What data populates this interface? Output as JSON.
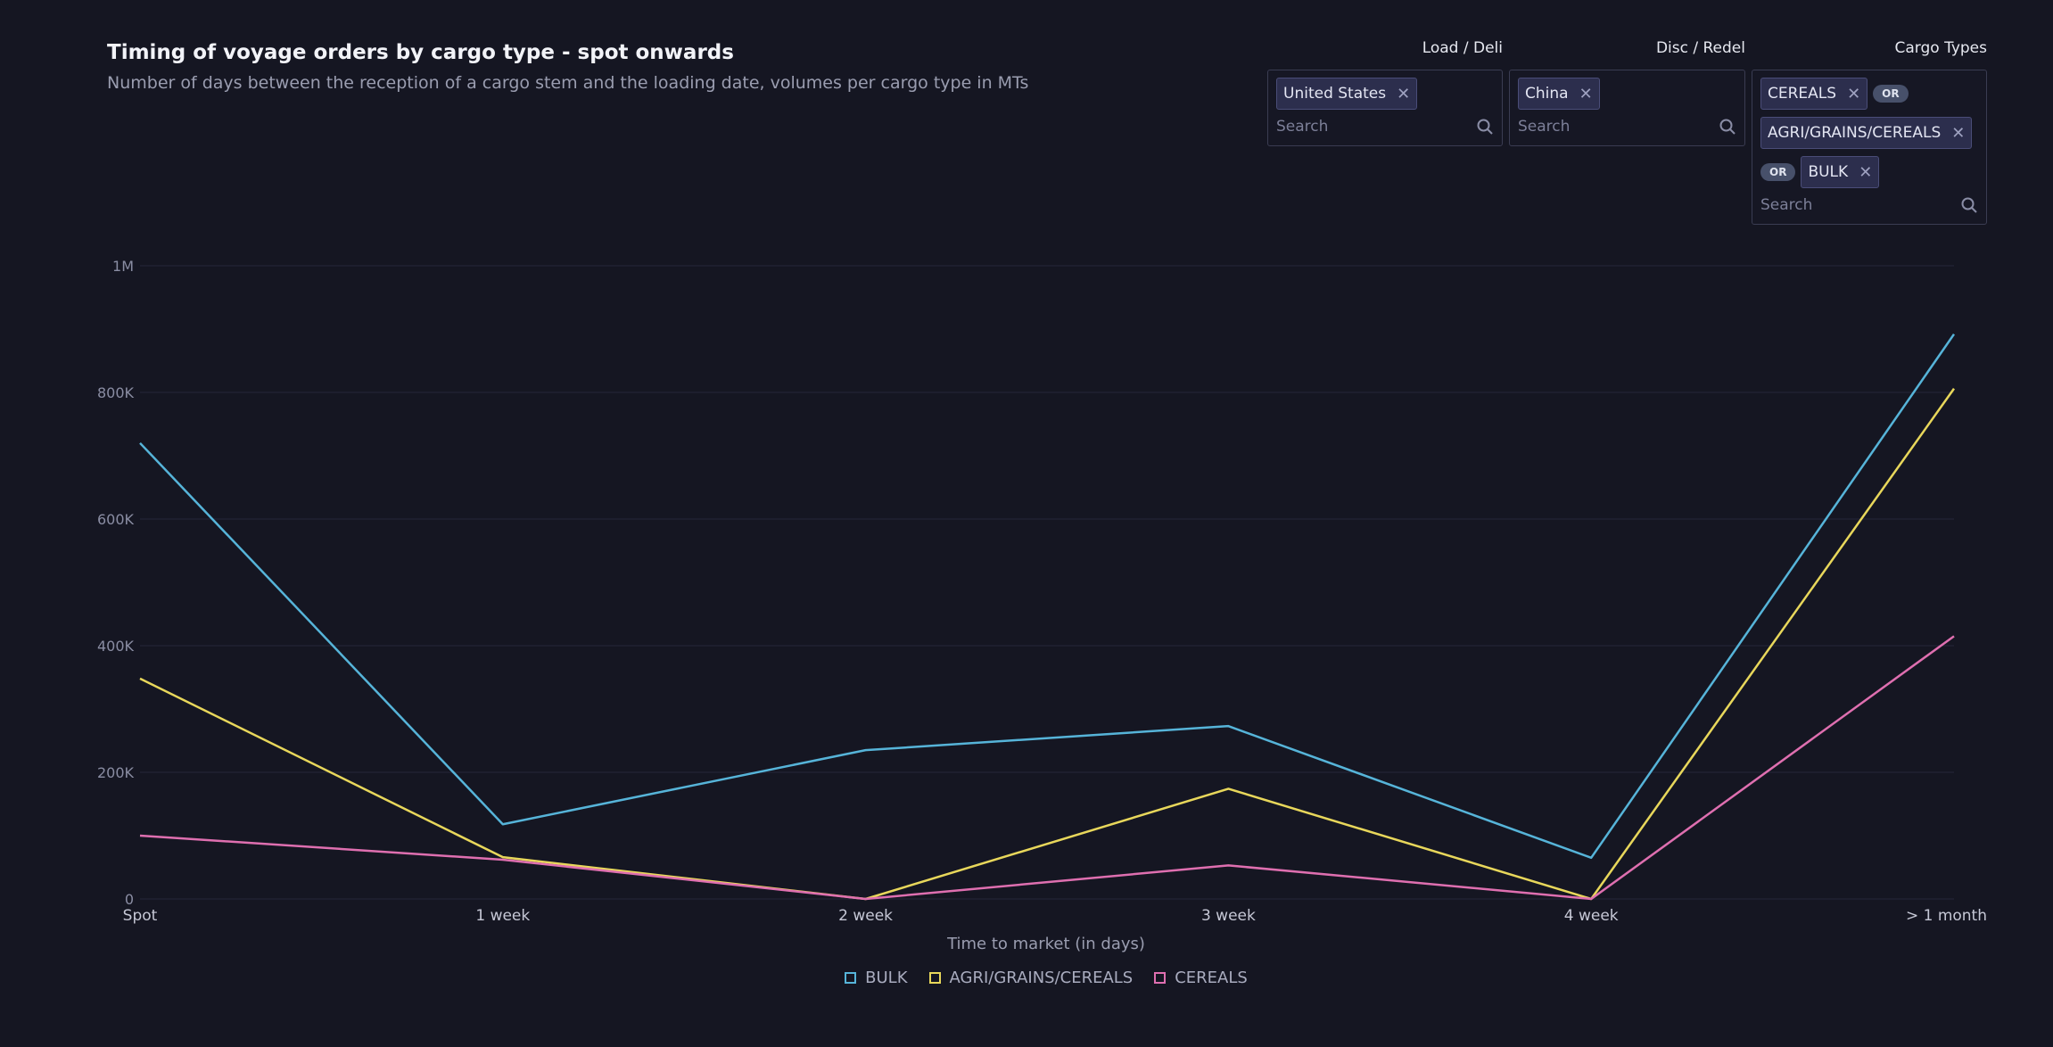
{
  "header": {
    "title": "Timing of voyage orders by cargo type - spot onwards",
    "subtitle": "Number of days between the reception of a cargo stem and the loading date, volumes per cargo type in MTs"
  },
  "filters": {
    "load": {
      "label": "Load / Deli",
      "chips": [
        "United States"
      ],
      "placeholder": "Search"
    },
    "disc": {
      "label": "Disc / Redel",
      "chips": [
        "China"
      ],
      "placeholder": "Search"
    },
    "cargo": {
      "label": "Cargo Types",
      "chips": [
        "CEREALS",
        "AGRI/GRAINS/CEREALS",
        "BULK"
      ],
      "operator": "OR",
      "placeholder": "Search"
    }
  },
  "icons": {
    "search": "search-icon",
    "remove": "close-icon"
  },
  "chart_data": {
    "type": "line",
    "xlabel": "Time to market (in days)",
    "ylabel": "",
    "categories": [
      "Spot",
      "1 week",
      "2 week",
      "3 week",
      "4 week",
      "> 1 month"
    ],
    "ylim": [
      0,
      1000000
    ],
    "yticks": [
      0,
      200000,
      400000,
      600000,
      800000,
      1000000
    ],
    "ytick_labels": [
      "0",
      "200K",
      "400K",
      "600K",
      "800K",
      "1M"
    ],
    "grid": true,
    "legend_position": "bottom-center",
    "series": [
      {
        "name": "BULK",
        "color": "#56b4d9",
        "values": [
          720000,
          118000,
          235000,
          273000,
          65000,
          892000
        ]
      },
      {
        "name": "AGRI/GRAINS/CEREALS",
        "color": "#e8d75b",
        "values": [
          348000,
          66000,
          0,
          174000,
          0,
          806000
        ]
      },
      {
        "name": "CEREALS",
        "color": "#df6fb0",
        "values": [
          100000,
          62000,
          0,
          53000,
          0,
          415000
        ]
      }
    ]
  }
}
